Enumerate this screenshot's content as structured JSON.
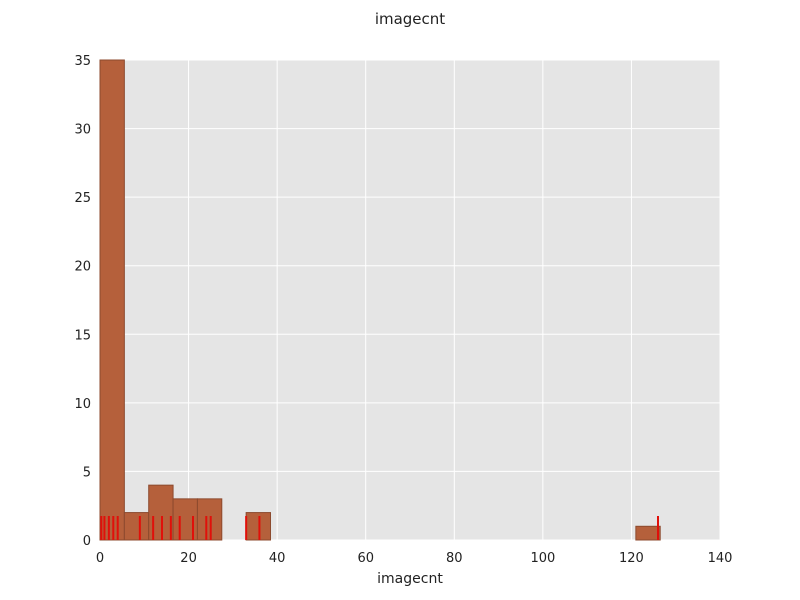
{
  "chart_data": {
    "type": "bar",
    "title": "imagecnt",
    "xlabel": "imagecnt",
    "ylabel": "",
    "xlim": [
      0,
      140
    ],
    "ylim": [
      0,
      35
    ],
    "xticks": [
      0,
      20,
      40,
      60,
      80,
      100,
      120,
      140
    ],
    "yticks": [
      0,
      5,
      10,
      15,
      20,
      25,
      30,
      35
    ],
    "grid": true,
    "bin_width": 5.5,
    "bins": [
      {
        "start": 0.0,
        "count": 35
      },
      {
        "start": 5.5,
        "count": 2
      },
      {
        "start": 11.0,
        "count": 4
      },
      {
        "start": 16.5,
        "count": 3
      },
      {
        "start": 22.0,
        "count": 3
      },
      {
        "start": 33.0,
        "count": 2
      },
      {
        "start": 121.0,
        "count": 1
      }
    ],
    "rug": [
      0.3,
      1,
      2,
      3,
      4,
      9,
      12,
      14,
      16,
      18,
      21,
      24,
      25,
      33,
      36,
      126
    ],
    "colors": {
      "plot_background": "#e5e5e5",
      "grid": "#ffffff",
      "bar_fill": "#b5603b",
      "bar_edge": "#8c4a2e",
      "rug": "#e0100a"
    }
  }
}
